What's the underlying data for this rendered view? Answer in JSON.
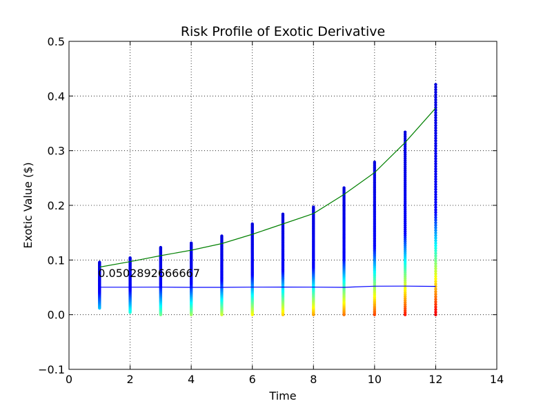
{
  "chart_data": {
    "type": "scatter",
    "title": "Risk Profile of Exotic Derivative",
    "xlabel": "Time",
    "ylabel": "Exotic Value ($)",
    "xlim": [
      0,
      14
    ],
    "ylim": [
      -0.1,
      0.5
    ],
    "x_ticks": [
      "0",
      "2",
      "4",
      "6",
      "8",
      "10",
      "12",
      "14"
    ],
    "y_ticks": [
      "−0.1",
      "0.0",
      "0.1",
      "0.2",
      "0.3",
      "0.4",
      "0.5"
    ],
    "grid": true,
    "annotation": {
      "text": "0.0502892666667",
      "x": 1.0,
      "y": 0.069
    },
    "scatter_columns": [
      {
        "x": 1,
        "min": 0.012,
        "max": 0.096
      },
      {
        "x": 2,
        "min": 0.004,
        "max": 0.104
      },
      {
        "x": 3,
        "min": 0.0,
        "max": 0.123
      },
      {
        "x": 4,
        "min": 0.0,
        "max": 0.131
      },
      {
        "x": 5,
        "min": 0.0,
        "max": 0.144
      },
      {
        "x": 6,
        "min": 0.0,
        "max": 0.166
      },
      {
        "x": 7,
        "min": 0.0,
        "max": 0.184
      },
      {
        "x": 8,
        "min": 0.0,
        "max": 0.197
      },
      {
        "x": 9,
        "min": 0.0,
        "max": 0.232
      },
      {
        "x": 10,
        "min": 0.0,
        "max": 0.279
      },
      {
        "x": 11,
        "min": 0.0,
        "max": 0.334
      },
      {
        "x": 12,
        "min": 0.0,
        "max": 0.421
      }
    ],
    "series": [
      {
        "color": "#008000",
        "x": [
          1,
          2,
          3,
          4,
          5,
          6,
          7,
          8,
          9,
          10,
          11,
          12
        ],
        "y": [
          0.087,
          0.097,
          0.108,
          0.118,
          0.13,
          0.147,
          0.166,
          0.185,
          0.22,
          0.26,
          0.315,
          0.378
        ]
      },
      {
        "color": "#0000ff",
        "x": [
          1,
          2,
          3,
          4,
          5,
          6,
          7,
          8,
          9,
          10,
          11,
          12
        ],
        "y": [
          0.0502,
          0.0503,
          0.0504,
          0.05,
          0.05,
          0.0504,
          0.0505,
          0.0504,
          0.05,
          0.0522,
          0.0523,
          0.0518
        ]
      }
    ],
    "colormap": "jet"
  }
}
